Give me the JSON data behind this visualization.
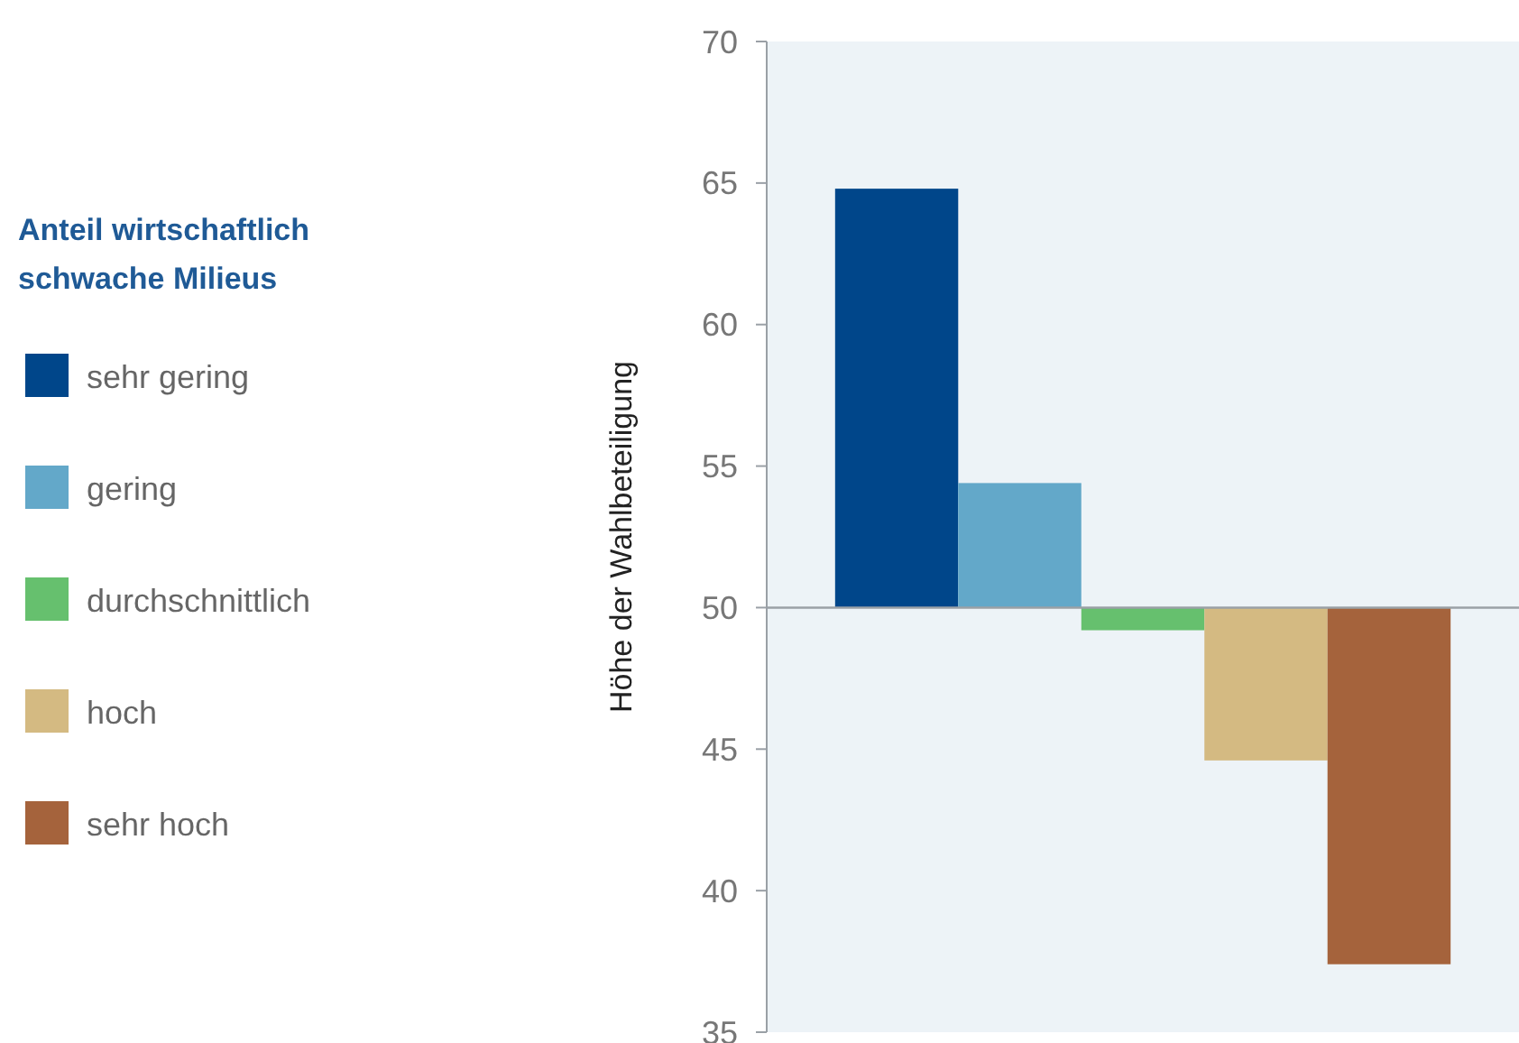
{
  "chart_data": {
    "type": "bar",
    "ylabel": "Höhe der Wahlbeteiligung",
    "legend_title": "Anteil wirtschaftlich schwache Milieus",
    "legend": "left",
    "categories": [
      null
    ],
    "series": [
      {
        "name": "sehr gering",
        "color": "#00468a",
        "values": [
          14.8
        ],
        "base": [
          50
        ]
      },
      {
        "name": "gering",
        "color": "#63a8c9",
        "values": [
          4.4
        ],
        "base": [
          50
        ]
      },
      {
        "name": "durchschnittlich",
        "color": "#66c06e",
        "values": [
          -0.8
        ],
        "base": [
          50
        ]
      },
      {
        "name": "hoch",
        "color": "#d4ba82",
        "values": [
          -5.4
        ],
        "base": [
          50
        ]
      },
      {
        "name": "sehr hoch",
        "color": "#a5633c",
        "values": [
          -12.6
        ],
        "base": [
          50
        ]
      }
    ],
    "ylim": [
      35,
      70
    ],
    "yticks": [
      35,
      40,
      45,
      50,
      55,
      60,
      65,
      70
    ],
    "grid": false,
    "ref_lines": [
      {
        "axis": "y",
        "value": 50,
        "color": "#9aa0a6"
      }
    ]
  }
}
